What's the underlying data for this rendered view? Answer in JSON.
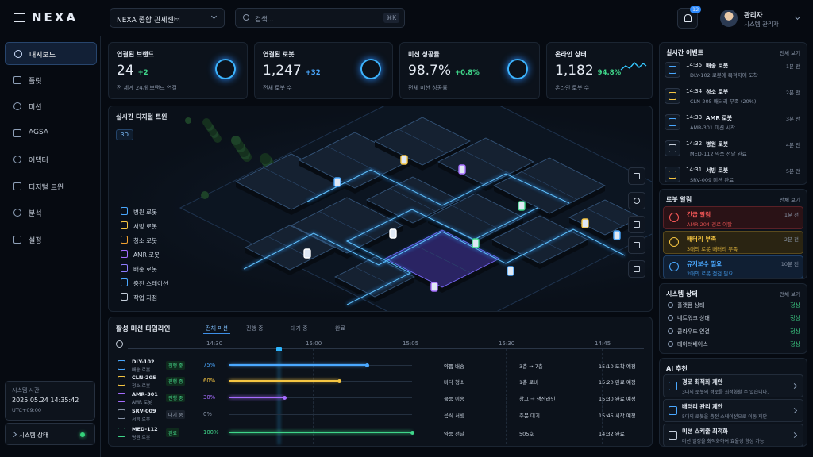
{
  "header": {
    "logo": "NEXA",
    "center_select": "NEXA 종합 관제센터",
    "search_placeholder": "검색...",
    "search_shortcut": "⌘K",
    "notification_count": "12",
    "user_name": "관리자",
    "user_role": "시스템 관리자"
  },
  "sidebar": {
    "nav": [
      "대시보드",
      "플릿",
      "미션",
      "AGSA",
      "어댑터",
      "디지털 트윈",
      "분석",
      "설정"
    ],
    "system_time_label": "시스템 시간",
    "system_time": "2025.05.24 14:35:42",
    "timezone": "UTC+09:00",
    "system_status": "시스템 상태"
  },
  "kpis": [
    {
      "title": "연결된 브랜드",
      "value": "24",
      "delta": "+2",
      "caption": "전 세계 24개 브랜드 연결"
    },
    {
      "title": "연결된 로봇",
      "value": "1,247",
      "delta": "+32",
      "caption": "전체 로봇 수"
    },
    {
      "title": "미션 성공률",
      "value": "98.7%",
      "delta": "+0.8%",
      "caption": "전체 미션 성공률"
    },
    {
      "title": "온라인 상태",
      "value": "1,182",
      "delta": "94.8%",
      "caption": "온라인 로봇 수"
    }
  ],
  "digital_twin": {
    "title": "실시간 디지털 트윈",
    "view_mode": "3D",
    "legend": [
      "병원 로봇",
      "서빙 로봇",
      "청소 로봇",
      "AMR 로봇",
      "배송 로봇",
      "충전 스테이션",
      "작업 지점"
    ]
  },
  "timeline": {
    "title": "활성 미션 타임라인",
    "tabs": [
      "전체 미션",
      "진행 중",
      "대기 중",
      "완료"
    ],
    "times": [
      "14:30",
      "15:00",
      "15:05",
      "15:30",
      "14:45"
    ],
    "rows": [
      {
        "id": "DLY-102",
        "type": "배송 로봇",
        "status": "진행 중",
        "progress": "75%",
        "mission": "약품 배송",
        "location": "3층 → 7층",
        "eta": "15:10 도착 예정"
      },
      {
        "id": "CLN-205",
        "type": "청소 로봇",
        "status": "진행 중",
        "progress": "60%",
        "mission": "바닥 청소",
        "location": "1층 로비",
        "eta": "15:20 완료 예정"
      },
      {
        "id": "AMR-301",
        "type": "AMR 로봇",
        "status": "진행 중",
        "progress": "30%",
        "mission": "물품 이송",
        "location": "창고 → 생산라인",
        "eta": "15:30 완료 예정"
      },
      {
        "id": "SRV-009",
        "type": "서빙 로봇",
        "status": "대기 중",
        "progress": "0%",
        "mission": "음식 서빙",
        "location": "주문 대기",
        "eta": "15:45 시작 예정"
      },
      {
        "id": "MED-112",
        "type": "병원 로봇",
        "status": "완료",
        "progress": "100%",
        "mission": "약품 전달",
        "location": "505호",
        "eta": "14:32 완료"
      }
    ]
  },
  "events": {
    "title": "실시간 이벤트",
    "view_all": "전체 보기",
    "items": [
      {
        "time": "14:35",
        "robot": "배송 로봇",
        "ago": "1분 전",
        "message": "DLY-102 로봇에 목적지에 도착"
      },
      {
        "time": "14:34",
        "robot": "청소 로봇",
        "ago": "2분 전",
        "message": "CLN-205 배터리 부족 (20%)"
      },
      {
        "time": "14:33",
        "robot": "AMR 로봇",
        "ago": "3분 전",
        "message": "AMR-301 미션 시작"
      },
      {
        "time": "14:32",
        "robot": "병원 로봇",
        "ago": "4분 전",
        "message": "MED-112 약품 전달 완료"
      },
      {
        "time": "14:31",
        "robot": "서빙 로봇",
        "ago": "5분 전",
        "message": "SRV-009 미션 완료"
      }
    ]
  },
  "alerts": {
    "title": "로봇 알림",
    "view_all": "전체 보기",
    "items": [
      {
        "title": "긴급 알림",
        "ago": "1분 전",
        "message": "AMR-204 경로 이탈"
      },
      {
        "title": "배터리 부족",
        "ago": "2분 전",
        "message": "3대의 로봇 배터리 부족"
      },
      {
        "title": "유지보수 필요",
        "ago": "10분 전",
        "message": "2대의 로봇 점검 필요"
      }
    ]
  },
  "system": {
    "title": "시스템 상태",
    "view_all": "전체 보기",
    "items": [
      {
        "name": "플랫폼 상태",
        "status": "정상"
      },
      {
        "name": "네트워크 상태",
        "status": "정상"
      },
      {
        "name": "클라우드 연결",
        "status": "정상"
      },
      {
        "name": "데이터베이스",
        "status": "정상"
      }
    ]
  },
  "ai": {
    "title": "AI 추천",
    "items": [
      {
        "title": "경로 최적화 제안",
        "description": "3대의 로봇의 경로를 최적화할 수 있습니다."
      },
      {
        "title": "배터리 관리 제안",
        "description": "5대의 로봇을 충전 스테이션으로 이동 제안"
      },
      {
        "title": "미션 스케줄 최적화",
        "description": "미션 일정을 최적화하여 효율성 향상 가능"
      }
    ]
  }
}
